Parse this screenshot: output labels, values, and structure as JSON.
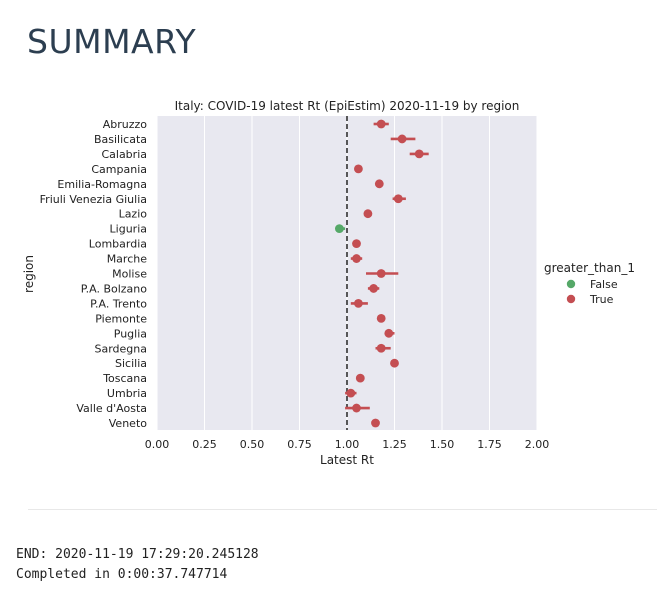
{
  "page": {
    "heading": "SUMMARY",
    "log": {
      "end_line": "END: 2020-11-19 17:29:20.245128",
      "completed_line": "Completed in 0:00:37.747714"
    }
  },
  "colors": {
    "plot_background": "#e8e8f0",
    "grid": "#ffffff",
    "true_color": "#c44e52",
    "false_color": "#55a868",
    "reference_line": "#333333"
  },
  "chart_data": {
    "type": "scatter",
    "title": "Italy: COVID-19 latest Rt (EpiEstim) 2020-11-19 by region",
    "xlabel": "Latest Rt",
    "ylabel": "region",
    "xlim": [
      0.0,
      2.0
    ],
    "xticks": [
      "0.00",
      "0.25",
      "0.50",
      "0.75",
      "1.00",
      "1.25",
      "1.50",
      "1.75",
      "2.00"
    ],
    "reference_line_x": 1.0,
    "grid": true,
    "legend": {
      "title": "greater_than_1",
      "placement": "right",
      "entries": [
        {
          "label": "False",
          "color": "#55a868"
        },
        {
          "label": "True",
          "color": "#c44e52"
        }
      ]
    },
    "points": [
      {
        "region": "Abruzzo",
        "rt": 1.18,
        "low": 1.14,
        "high": 1.22,
        "greater_than_1": true
      },
      {
        "region": "Basilicata",
        "rt": 1.29,
        "low": 1.23,
        "high": 1.36,
        "greater_than_1": true
      },
      {
        "region": "Calabria",
        "rt": 1.38,
        "low": 1.33,
        "high": 1.43,
        "greater_than_1": true
      },
      {
        "region": "Campania",
        "rt": 1.06,
        "low": 1.05,
        "high": 1.07,
        "greater_than_1": true
      },
      {
        "region": "Emilia-Romagna",
        "rt": 1.17,
        "low": 1.16,
        "high": 1.18,
        "greater_than_1": true
      },
      {
        "region": "Friuli Venezia Giulia",
        "rt": 1.27,
        "low": 1.24,
        "high": 1.31,
        "greater_than_1": true
      },
      {
        "region": "Lazio",
        "rt": 1.11,
        "low": 1.1,
        "high": 1.12,
        "greater_than_1": true
      },
      {
        "region": "Liguria",
        "rt": 0.96,
        "low": 0.94,
        "high": 0.99,
        "greater_than_1": false
      },
      {
        "region": "Lombardia",
        "rt": 1.05,
        "low": 1.04,
        "high": 1.06,
        "greater_than_1": true
      },
      {
        "region": "Marche",
        "rt": 1.05,
        "low": 1.02,
        "high": 1.08,
        "greater_than_1": true
      },
      {
        "region": "Molise",
        "rt": 1.18,
        "low": 1.1,
        "high": 1.27,
        "greater_than_1": true
      },
      {
        "region": "P.A. Bolzano",
        "rt": 1.14,
        "low": 1.11,
        "high": 1.17,
        "greater_than_1": true
      },
      {
        "region": "P.A. Trento",
        "rt": 1.06,
        "low": 1.02,
        "high": 1.11,
        "greater_than_1": true
      },
      {
        "region": "Piemonte",
        "rt": 1.18,
        "low": 1.17,
        "high": 1.19,
        "greater_than_1": true
      },
      {
        "region": "Puglia",
        "rt": 1.22,
        "low": 1.2,
        "high": 1.25,
        "greater_than_1": true
      },
      {
        "region": "Sardegna",
        "rt": 1.18,
        "low": 1.15,
        "high": 1.23,
        "greater_than_1": true
      },
      {
        "region": "Sicilia",
        "rt": 1.25,
        "low": 1.23,
        "high": 1.26,
        "greater_than_1": true
      },
      {
        "region": "Toscana",
        "rt": 1.07,
        "low": 1.06,
        "high": 1.08,
        "greater_than_1": true
      },
      {
        "region": "Umbria",
        "rt": 1.02,
        "low": 0.99,
        "high": 1.05,
        "greater_than_1": true
      },
      {
        "region": "Valle d'Aosta",
        "rt": 1.05,
        "low": 0.99,
        "high": 1.12,
        "greater_than_1": true
      },
      {
        "region": "Veneto",
        "rt": 1.15,
        "low": 1.14,
        "high": 1.16,
        "greater_than_1": true
      }
    ]
  }
}
